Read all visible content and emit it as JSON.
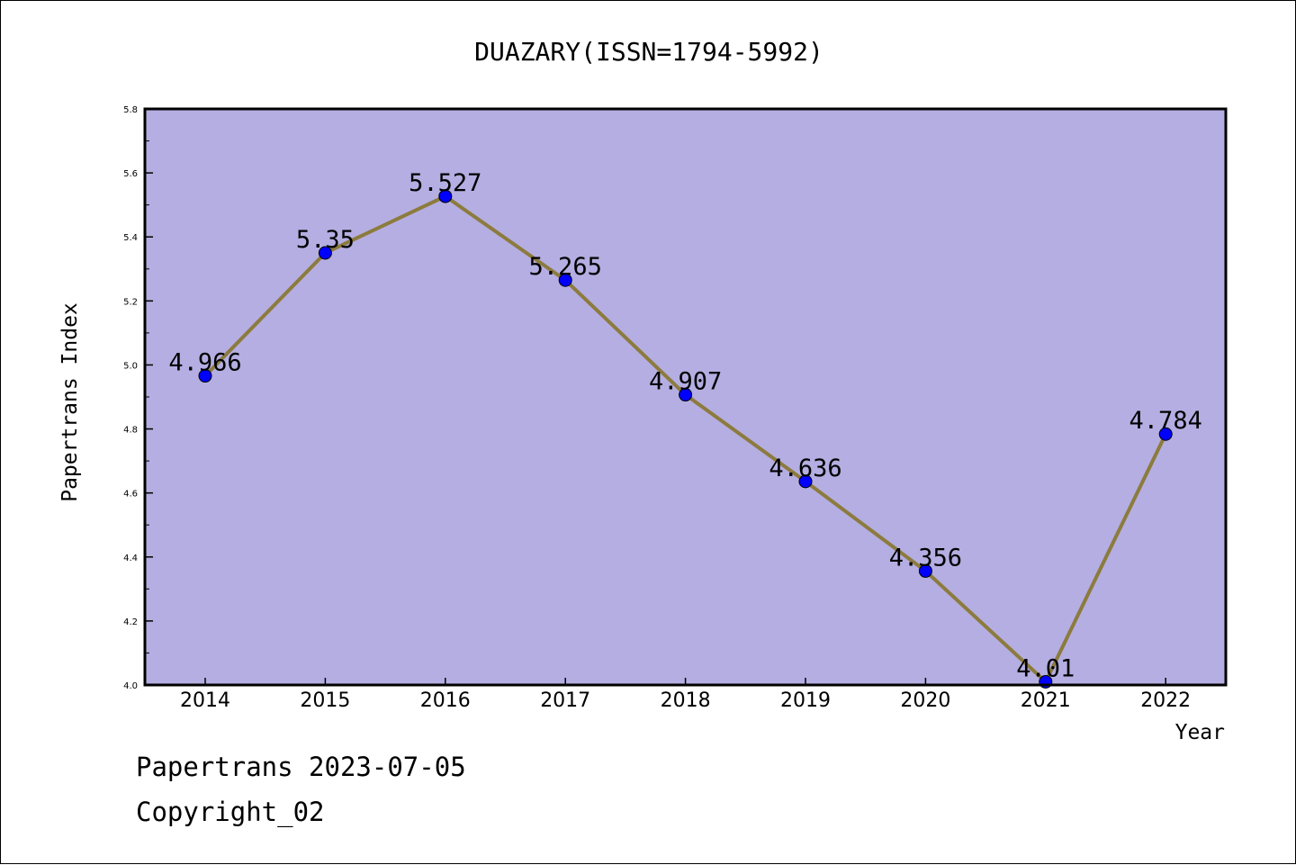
{
  "chart_data": {
    "type": "line",
    "title": "DUAZARY(ISSN=1794-5992)",
    "xlabel": "Year",
    "ylabel": "Papertrans Index",
    "x": [
      "2014",
      "2015",
      "2016",
      "2017",
      "2018",
      "2019",
      "2020",
      "2021",
      "2022"
    ],
    "values": [
      4.966,
      5.35,
      5.527,
      5.265,
      4.907,
      4.636,
      4.356,
      4.01,
      4.784
    ],
    "data_labels": [
      "4.966",
      "5.35",
      "5.527",
      "5.265",
      "4.907",
      "4.636",
      "4.356",
      "4.01",
      "4.784"
    ],
    "ylim": [
      4.0,
      5.8
    ],
    "y_ticks": [
      "4.0",
      "4.2",
      "4.4",
      "4.6",
      "4.8",
      "5.0",
      "5.2",
      "5.4",
      "5.6",
      "5.8"
    ],
    "grid": false,
    "legend": "none",
    "colors": {
      "plot_background": "#b4aee2",
      "line": "#8c7b3d",
      "marker": "#0000ff"
    }
  },
  "footer": {
    "line1": "Papertrans 2023-07-05",
    "line2": "Copyright_02"
  }
}
